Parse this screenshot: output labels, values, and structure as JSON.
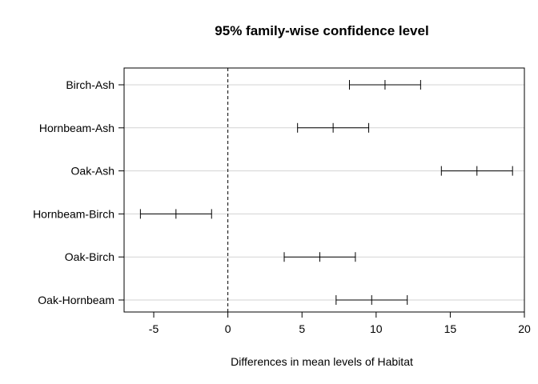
{
  "chart_data": {
    "type": "interval",
    "title": "95% family-wise confidence level",
    "xlabel": "Differences in mean levels of Habitat",
    "ylabel": "",
    "xlim": [
      -7,
      20
    ],
    "x_ticks": [
      -5,
      0,
      5,
      10,
      15,
      20
    ],
    "x_tick_labels": [
      "-5",
      "0",
      "5",
      "10",
      "15",
      "20"
    ],
    "reference_line": 0,
    "grid": "horizontal",
    "comparisons": [
      {
        "label": "Birch-Ash",
        "lower": 8.2,
        "estimate": 10.6,
        "upper": 13.0
      },
      {
        "label": "Hornbeam-Ash",
        "lower": 4.7,
        "estimate": 7.1,
        "upper": 9.5
      },
      {
        "label": "Oak-Ash",
        "lower": 14.4,
        "estimate": 16.8,
        "upper": 19.2
      },
      {
        "label": "Hornbeam-Birch",
        "lower": -5.9,
        "estimate": -3.5,
        "upper": -1.1
      },
      {
        "label": "Oak-Birch",
        "lower": 3.8,
        "estimate": 6.2,
        "upper": 8.6
      },
      {
        "label": "Oak-Hornbeam",
        "lower": 7.3,
        "estimate": 9.7,
        "upper": 12.1
      }
    ],
    "colors": {
      "interval": "#000000",
      "grid": "#d3d3d3",
      "axis": "#000000"
    }
  }
}
